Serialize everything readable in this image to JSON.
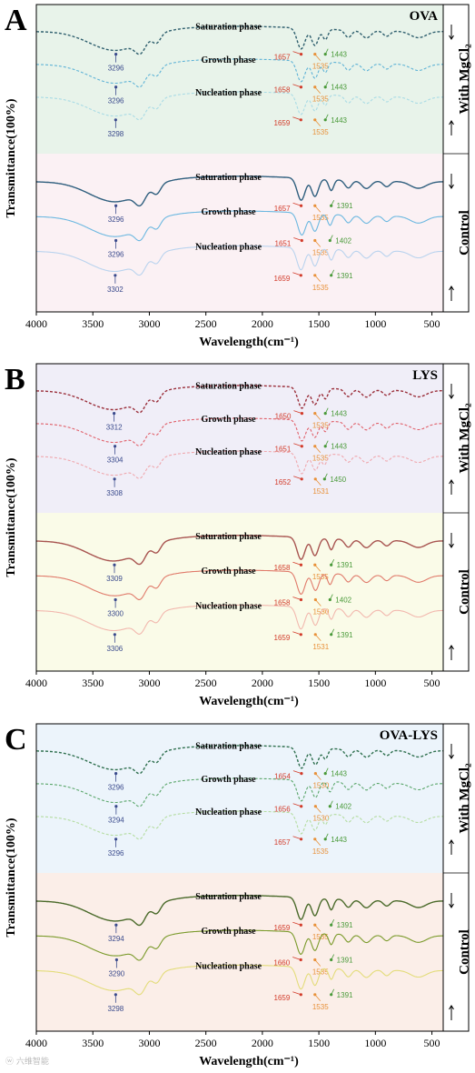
{
  "watermark": "ⓦ 六维智能",
  "chart_data": [
    {
      "type": "line",
      "panel": "A",
      "sample": "OVA",
      "xlabel": "Wavelength(cm⁻¹)",
      "ylabel": "Transmittance(100%)",
      "xlim": [
        4000,
        400
      ],
      "xticks": [
        4000,
        3500,
        3000,
        2500,
        2000,
        1500,
        1000,
        500
      ],
      "groups": [
        {
          "label": "With MgCl₂",
          "background": "#e8f3ea"
        },
        {
          "label": "Control",
          "background": "#fbf1f4"
        }
      ],
      "series": [
        {
          "name": "Saturation phase",
          "group": "With MgCl₂",
          "color": "#2f5f6e",
          "dash": true,
          "peaks": [
            {
              "x": 3296,
              "color": "#3a4a8c"
            },
            {
              "x": 1657,
              "color": "#d23b2a"
            },
            {
              "x": 1535,
              "color": "#e8913a"
            },
            {
              "x": 1443,
              "color": "#4a9a3a"
            }
          ]
        },
        {
          "name": "Growth phase",
          "group": "With MgCl₂",
          "color": "#5fb3d6",
          "dash": true,
          "peaks": [
            {
              "x": 3296,
              "color": "#3a4a8c"
            },
            {
              "x": 1658,
              "color": "#d23b2a"
            },
            {
              "x": 1535,
              "color": "#e8913a"
            },
            {
              "x": 1443,
              "color": "#4a9a3a"
            }
          ]
        },
        {
          "name": "Nucleation phase",
          "group": "With MgCl₂",
          "color": "#a9dbe5",
          "dash": true,
          "peaks": [
            {
              "x": 3298,
              "color": "#3a4a8c"
            },
            {
              "x": 1659,
              "color": "#d23b2a"
            },
            {
              "x": 1535,
              "color": "#e8913a"
            },
            {
              "x": 1443,
              "color": "#4a9a3a"
            }
          ]
        },
        {
          "name": "Saturation phase",
          "group": "Control",
          "color": "#2f5f7e",
          "dash": false,
          "peaks": [
            {
              "x": 3296,
              "color": "#3a4a8c"
            },
            {
              "x": 1657,
              "color": "#d23b2a"
            },
            {
              "x": 1535,
              "color": "#e8913a"
            },
            {
              "x": 1391,
              "color": "#4a9a3a"
            }
          ]
        },
        {
          "name": "Growth phase",
          "group": "Control",
          "color": "#6cb8e0",
          "dash": false,
          "peaks": [
            {
              "x": 3296,
              "color": "#3a4a8c"
            },
            {
              "x": 1651,
              "color": "#d23b2a"
            },
            {
              "x": 1535,
              "color": "#e8913a"
            },
            {
              "x": 1402,
              "color": "#4a9a3a"
            }
          ]
        },
        {
          "name": "Nucleation phase",
          "group": "Control",
          "color": "#b9d3ee",
          "dash": false,
          "peaks": [
            {
              "x": 3302,
              "color": "#3a4a8c"
            },
            {
              "x": 1659,
              "color": "#d23b2a"
            },
            {
              "x": 1535,
              "color": "#e8913a"
            },
            {
              "x": 1391,
              "color": "#4a9a3a"
            }
          ]
        }
      ]
    },
    {
      "type": "line",
      "panel": "B",
      "sample": "LYS",
      "xlabel": "Wavelength(cm⁻¹)",
      "ylabel": "Transmittance(100%)",
      "xlim": [
        4000,
        400
      ],
      "xticks": [
        4000,
        3500,
        3000,
        2500,
        2000,
        1500,
        1000,
        500
      ],
      "groups": [
        {
          "label": "With MgCl₂",
          "background": "#f0eef8"
        },
        {
          "label": "Control",
          "background": "#fafbe8"
        }
      ],
      "series": [
        {
          "name": "Saturation phase",
          "group": "With MgCl₂",
          "color": "#9a2e3a",
          "dash": true,
          "peaks": [
            {
              "x": 3312,
              "color": "#3a4a8c"
            },
            {
              "x": 1650,
              "color": "#d23b2a"
            },
            {
              "x": 1535,
              "color": "#e8913a"
            },
            {
              "x": 1443,
              "color": "#4a9a3a"
            }
          ]
        },
        {
          "name": "Growth phase",
          "group": "With MgCl₂",
          "color": "#e0606a",
          "dash": true,
          "peaks": [
            {
              "x": 3304,
              "color": "#3a4a8c"
            },
            {
              "x": 1651,
              "color": "#d23b2a"
            },
            {
              "x": 1535,
              "color": "#e8913a"
            },
            {
              "x": 1443,
              "color": "#4a9a3a"
            }
          ]
        },
        {
          "name": "Nucleation phase",
          "group": "With MgCl₂",
          "color": "#efa7ad",
          "dash": true,
          "peaks": [
            {
              "x": 3308,
              "color": "#3a4a8c"
            },
            {
              "x": 1652,
              "color": "#d23b2a"
            },
            {
              "x": 1531,
              "color": "#e8913a"
            },
            {
              "x": 1450,
              "color": "#4a9a3a"
            }
          ]
        },
        {
          "name": "Saturation phase",
          "group": "Control",
          "color": "#a85450",
          "dash": false,
          "peaks": [
            {
              "x": 3309,
              "color": "#3a4a8c"
            },
            {
              "x": 1658,
              "color": "#d23b2a"
            },
            {
              "x": 1535,
              "color": "#e8913a"
            },
            {
              "x": 1391,
              "color": "#4a9a3a"
            }
          ]
        },
        {
          "name": "Growth phase",
          "group": "Control",
          "color": "#e07a6a",
          "dash": false,
          "peaks": [
            {
              "x": 3300,
              "color": "#3a4a8c"
            },
            {
              "x": 1658,
              "color": "#d23b2a"
            },
            {
              "x": 1530,
              "color": "#e8913a"
            },
            {
              "x": 1402,
              "color": "#4a9a3a"
            }
          ]
        },
        {
          "name": "Nucleation phase",
          "group": "Control",
          "color": "#f2b8ae",
          "dash": false,
          "peaks": [
            {
              "x": 3306,
              "color": "#3a4a8c"
            },
            {
              "x": 1659,
              "color": "#d23b2a"
            },
            {
              "x": 1531,
              "color": "#e8913a"
            },
            {
              "x": 1391,
              "color": "#4a9a3a"
            }
          ]
        }
      ]
    },
    {
      "type": "line",
      "panel": "C",
      "sample": "OVA-LYS",
      "xlabel": "Wavelength(cm⁻¹)",
      "ylabel": "Transmittance(100%)",
      "xlim": [
        4000,
        400
      ],
      "xticks": [
        4000,
        3500,
        3000,
        2500,
        2000,
        1500,
        1000,
        500
      ],
      "groups": [
        {
          "label": "With MgCl₂",
          "background": "#ecf4fb"
        },
        {
          "label": "Control",
          "background": "#fbeee8"
        }
      ],
      "series": [
        {
          "name": "Saturation phase",
          "group": "With MgCl₂",
          "color": "#2e6f4e",
          "dash": true,
          "peaks": [
            {
              "x": 3296,
              "color": "#3a4a8c"
            },
            {
              "x": 1654,
              "color": "#d23b2a"
            },
            {
              "x": 1530,
              "color": "#e8913a"
            },
            {
              "x": 1443,
              "color": "#4a9a3a"
            }
          ]
        },
        {
          "name": "Growth phase",
          "group": "With MgCl₂",
          "color": "#5aa66a",
          "dash": true,
          "peaks": [
            {
              "x": 3294,
              "color": "#3a4a8c"
            },
            {
              "x": 1656,
              "color": "#d23b2a"
            },
            {
              "x": 1530,
              "color": "#e8913a"
            },
            {
              "x": 1402,
              "color": "#4a9a3a"
            }
          ]
        },
        {
          "name": "Nucleation phase",
          "group": "With MgCl₂",
          "color": "#b4dca0",
          "dash": true,
          "peaks": [
            {
              "x": 3296,
              "color": "#3a4a8c"
            },
            {
              "x": 1657,
              "color": "#d23b2a"
            },
            {
              "x": 1535,
              "color": "#e8913a"
            },
            {
              "x": 1443,
              "color": "#4a9a3a"
            }
          ]
        },
        {
          "name": "Saturation phase",
          "group": "Control",
          "color": "#4a6a2a",
          "dash": false,
          "peaks": [
            {
              "x": 3294,
              "color": "#3a4a8c"
            },
            {
              "x": 1659,
              "color": "#d23b2a"
            },
            {
              "x": 1535,
              "color": "#e8913a"
            },
            {
              "x": 1391,
              "color": "#4a9a3a"
            }
          ]
        },
        {
          "name": "Growth phase",
          "group": "Control",
          "color": "#7a9a2a",
          "dash": false,
          "peaks": [
            {
              "x": 3290,
              "color": "#3a4a8c"
            },
            {
              "x": 1660,
              "color": "#d23b2a"
            },
            {
              "x": 1535,
              "color": "#e8913a"
            },
            {
              "x": 1391,
              "color": "#4a9a3a"
            }
          ]
        },
        {
          "name": "Nucleation phase",
          "group": "Control",
          "color": "#e3dc7a",
          "dash": false,
          "peaks": [
            {
              "x": 3298,
              "color": "#3a4a8c"
            },
            {
              "x": 1659,
              "color": "#d23b2a"
            },
            {
              "x": 1535,
              "color": "#e8913a"
            },
            {
              "x": 1391,
              "color": "#4a9a3a"
            }
          ]
        }
      ]
    }
  ]
}
